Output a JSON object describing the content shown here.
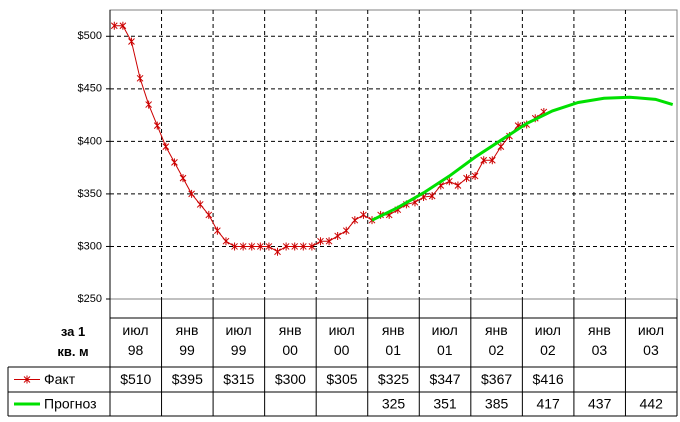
{
  "chart_data": {
    "type": "line",
    "categories": [
      "июл 98",
      "янв 99",
      "июл 99",
      "янв 00",
      "июл 00",
      "янв 01",
      "июл 01",
      "янв 02",
      "июл 02",
      "янв 03",
      "июл 03"
    ],
    "xlim": [
      "1998-07",
      "2004-01"
    ],
    "ylim": [
      250,
      525
    ],
    "yticks": [
      {
        "value": 250,
        "label": "$250"
      },
      {
        "value": 300,
        "label": "$300"
      },
      {
        "value": 350,
        "label": "$350"
      },
      {
        "value": 400,
        "label": "$400"
      },
      {
        "value": 450,
        "label": "$450"
      },
      {
        "value": 500,
        "label": "$500"
      }
    ],
    "grid": true,
    "series": [
      {
        "name": "Факт",
        "color": "#cc0000",
        "marker": "star",
        "x": [
          "1998-07",
          "1998-08",
          "1998-09",
          "1998-10",
          "1998-11",
          "1998-12",
          "1999-01",
          "1999-02",
          "1999-03",
          "1999-04",
          "1999-05",
          "1999-06",
          "1999-07",
          "1999-08",
          "1999-09",
          "1999-10",
          "1999-11",
          "1999-12",
          "2000-01",
          "2000-02",
          "2000-03",
          "2000-04",
          "2000-05",
          "2000-06",
          "2000-07",
          "2000-08",
          "2000-09",
          "2000-10",
          "2000-11",
          "2000-12",
          "2001-01",
          "2001-02",
          "2001-03",
          "2001-04",
          "2001-05",
          "2001-06",
          "2001-07",
          "2001-08",
          "2001-09",
          "2001-10",
          "2001-11",
          "2001-12",
          "2002-01",
          "2002-02",
          "2002-03",
          "2002-04",
          "2002-05",
          "2002-06",
          "2002-07",
          "2002-08",
          "2002-09"
        ],
        "values": [
          510,
          510,
          495,
          460,
          435,
          415,
          395,
          380,
          365,
          350,
          340,
          330,
          315,
          305,
          300,
          300,
          300,
          300,
          300,
          295,
          300,
          300,
          300,
          300,
          305,
          305,
          310,
          315,
          325,
          330,
          325,
          330,
          330,
          335,
          340,
          342,
          347,
          348,
          358,
          362,
          358,
          365,
          367,
          382,
          382,
          395,
          405,
          415,
          416,
          422,
          428
        ]
      },
      {
        "name": "Прогноз",
        "color": "#00e000",
        "marker": "none",
        "x": [
          "2001-01",
          "2001-04",
          "2001-07",
          "2001-10",
          "2002-01",
          "2002-04",
          "2002-07",
          "2002-10",
          "2003-01",
          "2003-04",
          "2003-07",
          "2003-10",
          "2003-12"
        ],
        "values": [
          325,
          337,
          351,
          367,
          385,
          401,
          417,
          429,
          437,
          441,
          442,
          440,
          435
        ]
      }
    ],
    "table": {
      "header": "за 1 кв. м",
      "rows": [
        {
          "values": [
            510,
            395,
            315,
            300,
            305,
            325,
            347,
            367,
            416,
            null,
            null
          ],
          "value_labels": [
            "$510",
            "$395",
            "$315",
            "$300",
            "$305",
            "$325",
            "$347",
            "$367",
            "$416",
            null,
            null
          ]
        },
        {
          "values": [
            null,
            null,
            null,
            null,
            null,
            325,
            351,
            385,
            417,
            437,
            442
          ]
        }
      ]
    }
  }
}
